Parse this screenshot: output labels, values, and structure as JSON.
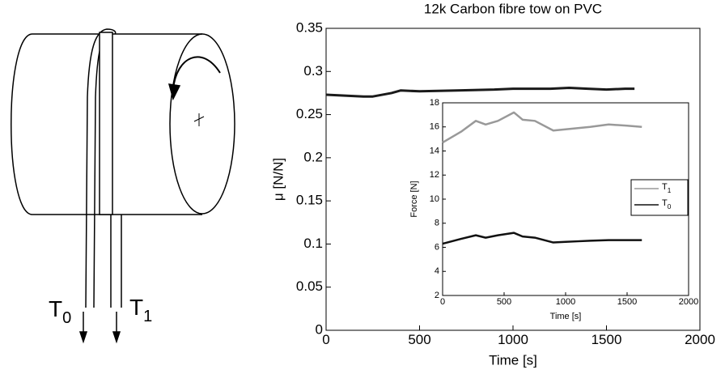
{
  "diagram": {
    "labels": [
      {
        "main": "T",
        "sub": "0"
      },
      {
        "main": "T",
        "sub": "1"
      }
    ]
  },
  "chart_data": [
    {
      "type": "line",
      "title": "12k Carbon fibre tow on PVC",
      "x_label": "Time [s]",
      "y_label": "μ  [N/N]",
      "x": [
        0,
        100,
        200,
        250,
        350,
        400,
        500,
        700,
        900,
        1000,
        1100,
        1200,
        1300,
        1400,
        1500,
        1600,
        1650
      ],
      "values": [
        0.273,
        0.272,
        0.271,
        0.271,
        0.275,
        0.278,
        0.277,
        0.278,
        0.279,
        0.28,
        0.28,
        0.28,
        0.281,
        0.28,
        0.279,
        0.28,
        0.28
      ],
      "color": "#1a1a1a",
      "xlim": [
        0,
        2000
      ],
      "xticks": [
        0,
        500,
        1000,
        1500,
        2000
      ],
      "ylim": [
        0,
        0.35
      ],
      "yticks": [
        0,
        0.05,
        0.1,
        0.15,
        0.2,
        0.25,
        0.3,
        0.35
      ]
    },
    {
      "type": "line",
      "x_label": "Time [s]",
      "y_label": "Force [N]",
      "x": [
        0,
        150,
        270,
        350,
        450,
        580,
        650,
        750,
        900,
        1000,
        1100,
        1200,
        1350,
        1500,
        1620
      ],
      "series": [
        {
          "name": "T1",
          "color": "#999999",
          "values": [
            14.7,
            15.6,
            16.5,
            16.2,
            16.5,
            17.2,
            16.6,
            16.5,
            15.7,
            15.8,
            15.9,
            16.0,
            16.2,
            16.1,
            16.0
          ]
        },
        {
          "name": "T0",
          "color": "#111111",
          "values": [
            6.3,
            6.7,
            7.0,
            6.8,
            7.0,
            7.2,
            6.9,
            6.8,
            6.4,
            6.45,
            6.5,
            6.55,
            6.6,
            6.6,
            6.6
          ]
        }
      ],
      "xlim": [
        0,
        2000
      ],
      "xticks": [
        0,
        500,
        1000,
        1500,
        2000
      ],
      "ylim": [
        2,
        18
      ],
      "yticks": [
        2,
        4,
        6,
        8,
        10,
        12,
        14,
        16,
        18
      ]
    }
  ]
}
